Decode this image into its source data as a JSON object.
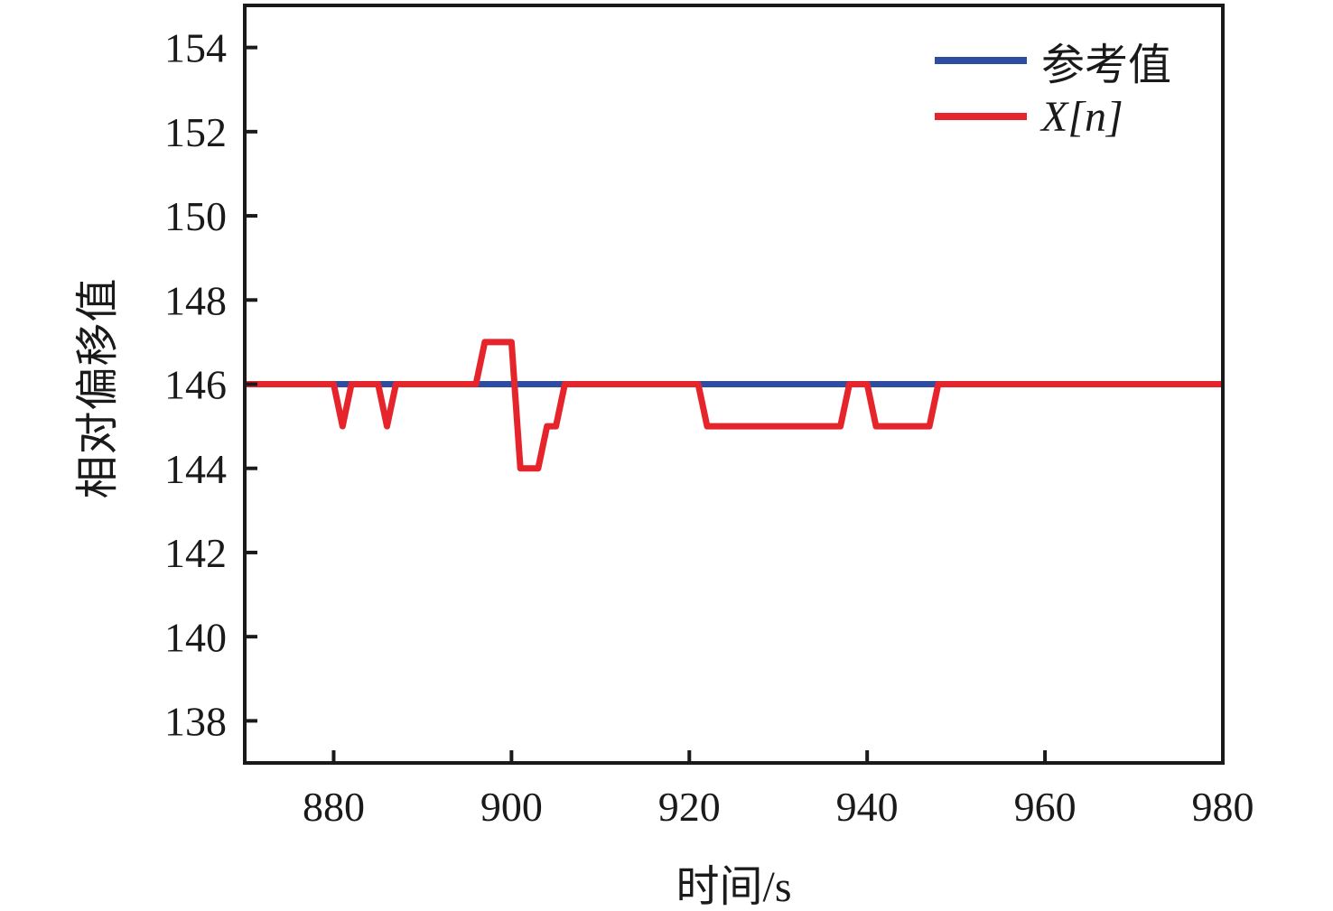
{
  "chart_data": {
    "type": "line",
    "title": "",
    "xlabel": "时间/s",
    "ylabel": "相对偏移值",
    "xlim": [
      870,
      980
    ],
    "ylim": [
      137,
      155
    ],
    "xticks": [
      880,
      900,
      920,
      940,
      960,
      980
    ],
    "yticks": [
      138,
      140,
      142,
      144,
      146,
      148,
      150,
      152,
      154
    ],
    "grid": false,
    "legend_position": "upper right",
    "axis_color": "#1a1a1a",
    "series": [
      {
        "name": "参考值",
        "color": "#2F4DA0",
        "points": [
          [
            870,
            146
          ],
          [
            980,
            146
          ]
        ]
      },
      {
        "name": "X[n]",
        "color": "#E5242C",
        "points": [
          [
            870,
            146
          ],
          [
            880,
            146
          ],
          [
            881,
            145
          ],
          [
            882,
            146
          ],
          [
            885,
            146
          ],
          [
            886,
            145
          ],
          [
            887,
            146
          ],
          [
            896,
            146
          ],
          [
            897,
            147
          ],
          [
            900,
            147
          ],
          [
            901,
            144
          ],
          [
            903,
            144
          ],
          [
            904,
            145
          ],
          [
            905,
            145
          ],
          [
            906,
            146
          ],
          [
            921,
            146
          ],
          [
            922,
            145
          ],
          [
            937,
            145
          ],
          [
            938,
            146
          ],
          [
            940,
            146
          ],
          [
            941,
            145
          ],
          [
            947,
            145
          ],
          [
            948,
            146
          ],
          [
            980,
            146
          ]
        ]
      }
    ]
  }
}
